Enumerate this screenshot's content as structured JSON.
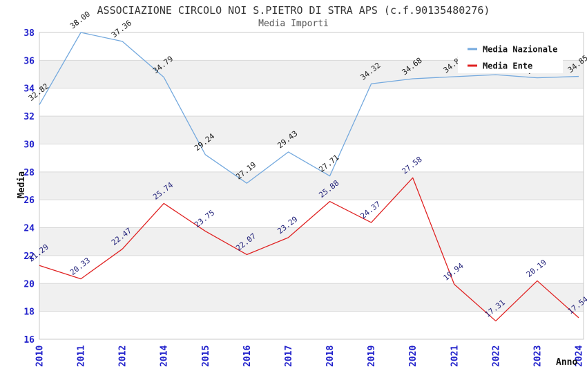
{
  "chart_data": {
    "type": "line",
    "title": "ASSOCIAZIONE CIRCOLO NOI S.PIETRO DI STRA APS (c.f.90135480276)",
    "subtitle": "Media Importi",
    "xlabel": "Anno",
    "ylabel": "Media",
    "categories": [
      "2010",
      "2011",
      "2012",
      "2014",
      "2015",
      "2016",
      "2017",
      "2018",
      "2019",
      "2020",
      "2021",
      "2022",
      "2023",
      "2024"
    ],
    "ylim": [
      16,
      38
    ],
    "ytick_step": 2,
    "grid": true,
    "alternating_bands": true,
    "legend_position": "top-right",
    "series": [
      {
        "name": "Media Nazionale",
        "color": "#74A9DE",
        "label_color": "#1a1a1a",
        "values": [
          32.82,
          38.0,
          37.36,
          34.79,
          29.24,
          27.19,
          29.43,
          27.71,
          34.32,
          34.68,
          34.83,
          34.97,
          34.75,
          34.85
        ]
      },
      {
        "name": "Media Ente",
        "color": "#E02222",
        "label_color": "#22227a",
        "values": [
          21.29,
          20.33,
          22.47,
          25.74,
          23.75,
          22.07,
          23.29,
          25.88,
          24.37,
          27.58,
          19.94,
          17.31,
          20.19,
          17.54
        ]
      }
    ],
    "colors": {
      "tick_label": "#2222cc",
      "band": "#f0f0f0",
      "gridline": "#d9d9d9",
      "plot_border": "#c8c8c8",
      "legend_background": "#ffffff"
    }
  }
}
